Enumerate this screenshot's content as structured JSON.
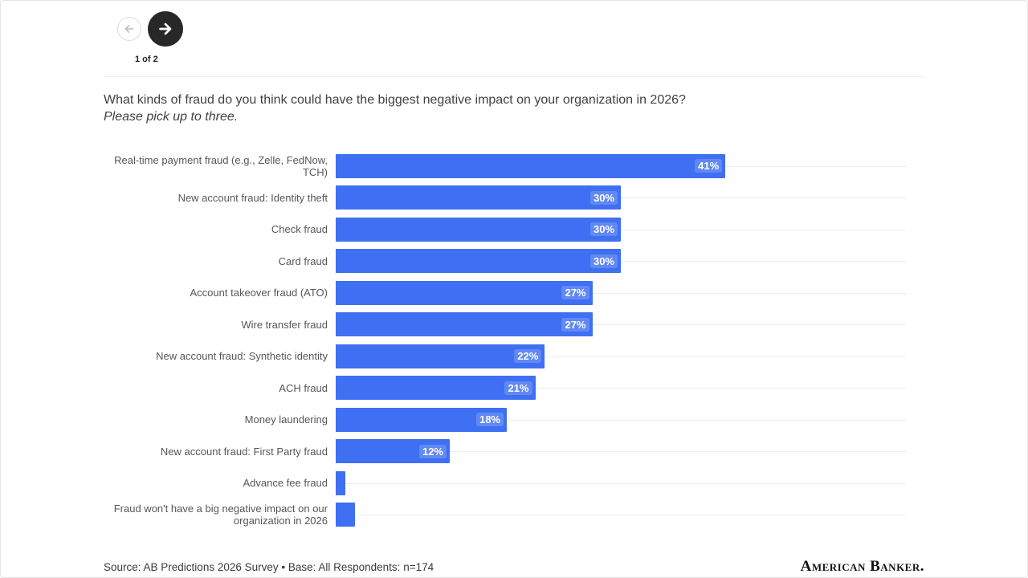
{
  "pagination": {
    "label": "1 of 2"
  },
  "nav": {
    "prev": "previous chart",
    "next": "next chart"
  },
  "title": {
    "line1": "What kinds of fraud do you think could have the biggest negative impact on your organization in 2026?",
    "line2": "Please pick up to three."
  },
  "chart_data": {
    "type": "bar",
    "orientation": "horizontal",
    "categories": [
      "Real-time payment fraud (e.g., Zelle, FedNow, TCH)",
      "New account fraud: Identity theft",
      "Check fraud",
      "Card fraud",
      "Account takeover fraud (ATO)",
      "Wire transfer fraud",
      "New account fraud: Synthetic identity",
      "ACH fraud",
      "Money laundering",
      "New account fraud: First Party fraud",
      "Advance fee fraud",
      "Fraud won't have a big negative impact on our organization in 2026"
    ],
    "values": [
      41,
      30,
      30,
      30,
      27,
      27,
      22,
      21,
      18,
      12,
      1,
      2
    ],
    "value_labels": [
      "41%",
      "30%",
      "30%",
      "30%",
      "27%",
      "27%",
      "22%",
      "21%",
      "18%",
      "12%",
      "",
      ""
    ],
    "xlim": [
      0,
      60
    ],
    "bar_color": "#3f6ff2",
    "grid": true,
    "legend_position": "none",
    "title": "What kinds of fraud do you think could have the biggest negative impact on your organization in 2026? Please pick up to three.",
    "xlabel": "",
    "ylabel": ""
  },
  "footer": {
    "source": "Source: AB Predictions 2026 Survey • Base: All Respondents: n=174",
    "logo": "American Banker."
  }
}
